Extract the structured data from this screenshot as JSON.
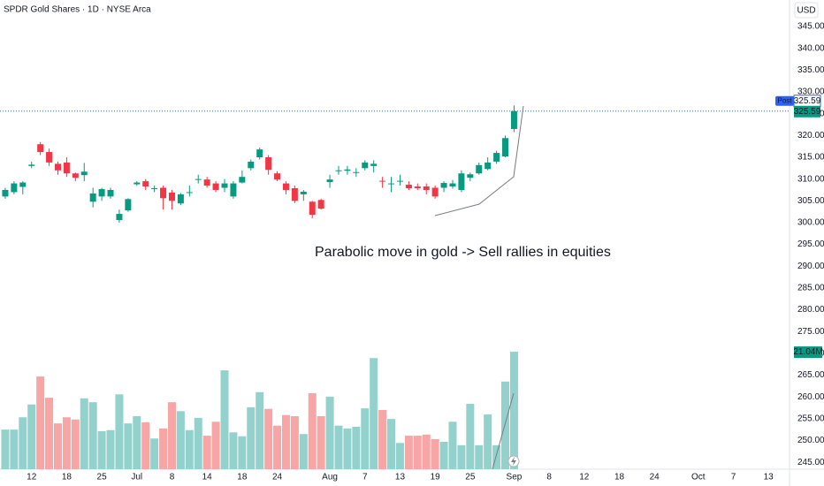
{
  "chart_data": {
    "type": "candlestick",
    "title": "SPDR Gold Shares · 1D · NYSE Arca",
    "currency": "USD",
    "annotation": "Parabolic move in gold -> Sell rallies in equities",
    "x": [
      0,
      1,
      2,
      3,
      4,
      5,
      6,
      7,
      8,
      9,
      10,
      11,
      12,
      13,
      14,
      15,
      16,
      17,
      18,
      19,
      20,
      21,
      22,
      23,
      24,
      25,
      26,
      27,
      28,
      29,
      30,
      31,
      32,
      33,
      34,
      35,
      36,
      37,
      38,
      39,
      40,
      41,
      42,
      43,
      44,
      45,
      46,
      47,
      48,
      49,
      50,
      51,
      52,
      53,
      54,
      55,
      56,
      57,
      58
    ],
    "open": [
      306,
      307,
      308.2,
      313,
      318,
      316.2,
      313.5,
      313.8,
      311.3,
      310.9,
      304.8,
      306,
      306,
      300.6,
      302.8,
      308.8,
      309.5,
      307.7,
      308,
      306.9,
      304.4,
      306.8,
      309.8,
      309.9,
      309,
      308,
      306,
      309.2,
      312.5,
      315,
      315,
      311.3,
      309,
      307.9,
      306.5,
      304.8,
      305.2,
      309.3,
      311.8,
      311.9,
      311.4,
      312.5,
      313,
      309.6,
      308.8,
      309.4,
      308.7,
      308.3,
      308.3,
      308,
      308,
      308.3,
      307.5,
      310.3,
      311.3,
      312.3,
      314,
      315.2,
      321.5
    ],
    "high": [
      308,
      309.5,
      309.5,
      314,
      318.5,
      317,
      314,
      315,
      311.5,
      313.7,
      308,
      308,
      308,
      303,
      305.6,
      309.5,
      310,
      308.5,
      308.5,
      307.5,
      306.8,
      308.5,
      311,
      310.5,
      309.5,
      310,
      309.5,
      312,
      314.5,
      317.2,
      315.5,
      311.8,
      309.5,
      308.5,
      307.5,
      305,
      305.5,
      311,
      313,
      313,
      312.5,
      314.3,
      314.3,
      310.5,
      310.5,
      311,
      309.5,
      309,
      309,
      308.5,
      309.5,
      309.8,
      312,
      311.5,
      313.8,
      315,
      316.5,
      320,
      326.9
    ],
    "low": [
      305.5,
      306.5,
      306.5,
      312.5,
      315.5,
      313,
      311,
      310.5,
      309.5,
      309.5,
      303.5,
      305,
      305.5,
      300,
      302.5,
      308.5,
      307.5,
      307,
      303,
      303,
      304,
      306,
      309,
      308,
      307,
      307,
      305.5,
      309,
      312,
      314.5,
      311,
      309.5,
      306.5,
      304.5,
      305,
      301,
      303,
      308,
      311,
      311,
      310.5,
      312,
      311.5,
      308,
      307,
      308.5,
      307.5,
      307.5,
      306.5,
      305.5,
      307,
      307.8,
      307,
      309.5,
      311,
      312,
      313.5,
      315,
      320.8
    ],
    "close": [
      307.5,
      309,
      309.2,
      313.3,
      316.2,
      313.8,
      312,
      311.3,
      310.3,
      311.7,
      306.7,
      307.7,
      307.5,
      302,
      305.4,
      309.2,
      308.3,
      307.9,
      305.6,
      305,
      306.5,
      307,
      310,
      308.5,
      307.5,
      309,
      309,
      310.5,
      314,
      316.8,
      312.1,
      309.9,
      307.5,
      305,
      307.1,
      301.8,
      303.2,
      309.9,
      312,
      312.2,
      311.6,
      313.8,
      313.5,
      309.4,
      309,
      309.6,
      307.9,
      307.9,
      307.5,
      306,
      309.1,
      309,
      311.3,
      311.1,
      313.2,
      313.8,
      316,
      319.4,
      325.59
    ],
    "volume": [
      7.1,
      7.1,
      9.3,
      11.6,
      16.6,
      12.8,
      8.2,
      9.3,
      8.9,
      12.7,
      12.0,
      6.8,
      7.0,
      13.4,
      8.2,
      9.5,
      8.4,
      5.5,
      7.3,
      12.0,
      10.4,
      7.0,
      9.2,
      6.0,
      8.5,
      17.7,
      6.6,
      5.9,
      11.1,
      13.8,
      10.8,
      7.8,
      9.7,
      9.5,
      6.3,
      13.6,
      9.5,
      13.0,
      7.8,
      7.3,
      7.6,
      10.9,
      19.9,
      10.6,
      9.0,
      4.7,
      6.0,
      6.0,
      6.2,
      5.4,
      4.9,
      8.5,
      4.3,
      11.7,
      4.3,
      9.8,
      4.3,
      15.7,
      21.04
    ],
    "volume_label": "21.04M",
    "post": {
      "label": "Post",
      "price": 325.59
    },
    "up_color": "#089981",
    "down_color": "#f23645",
    "up_volume_color": "#93d2cc",
    "down_volume_color": "#f7a5a5",
    "xlim": [
      -0.6,
      89.4
    ],
    "xticks": [
      {
        "value": 3,
        "label": "12"
      },
      {
        "value": 7,
        "label": "18"
      },
      {
        "value": 11,
        "label": "25"
      },
      {
        "value": 15,
        "label": "Jul"
      },
      {
        "value": 19,
        "label": "8"
      },
      {
        "value": 23,
        "label": "14"
      },
      {
        "value": 27,
        "label": "18"
      },
      {
        "value": 31,
        "label": "24"
      },
      {
        "value": 37,
        "label": "Aug"
      },
      {
        "value": 41,
        "label": "7"
      },
      {
        "value": 45,
        "label": "13"
      },
      {
        "value": 49,
        "label": "19"
      },
      {
        "value": 53,
        "label": "25"
      },
      {
        "value": 58,
        "label": "Sep"
      },
      {
        "value": 62,
        "label": "8"
      },
      {
        "value": 66,
        "label": "12"
      },
      {
        "value": 70,
        "label": "18"
      },
      {
        "value": 74,
        "label": "24"
      },
      {
        "value": 79,
        "label": "Oct"
      },
      {
        "value": 83,
        "label": "7"
      },
      {
        "value": 87,
        "label": "13"
      }
    ],
    "ylim": [
      243.4,
      351.1
    ],
    "yticks": [
      {
        "value": 245,
        "label": "245.00"
      },
      {
        "value": 250,
        "label": "250.00"
      },
      {
        "value": 255,
        "label": "255.00"
      },
      {
        "value": 260,
        "label": "260.00"
      },
      {
        "value": 265,
        "label": "265.00"
      },
      {
        "value": 270,
        "label": "270.00"
      },
      {
        "value": 275,
        "label": "275.00"
      },
      {
        "value": 280,
        "label": "280.00"
      },
      {
        "value": 285,
        "label": "285.00"
      },
      {
        "value": 290,
        "label": "290.00"
      },
      {
        "value": 295,
        "label": "295.00"
      },
      {
        "value": 300,
        "label": "300.00"
      },
      {
        "value": 305,
        "label": "305.00"
      },
      {
        "value": 310,
        "label": "310.00"
      },
      {
        "value": 315,
        "label": "315.00"
      },
      {
        "value": 320,
        "label": "320.00"
      },
      {
        "value": 325,
        "label": "325.00"
      },
      {
        "value": 330,
        "label": "330.00"
      },
      {
        "value": 335,
        "label": "335.00"
      },
      {
        "value": 340,
        "label": "340.00"
      },
      {
        "value": 345,
        "label": "345.00"
      }
    ],
    "grid": false
  }
}
